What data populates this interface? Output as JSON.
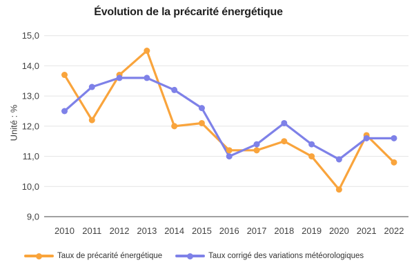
{
  "title": "Évolution de la précarité énergétique",
  "y_axis_label": "Unité : %",
  "colors": {
    "series_precarite": "#F9A43C",
    "series_corrige": "#7E81E8",
    "grid": "#E4E4E4",
    "axis": "#424242",
    "tick_text": "#424242",
    "legend_text": "#333333",
    "title_text": "#1F1F1F",
    "background": "#FFFFFF"
  },
  "legend": {
    "items": [
      {
        "label": "Taux de précarité énergétique",
        "color": "#F9A43C"
      },
      {
        "label": "Taux corrigé des variations météorologiques",
        "color": "#7E81E8"
      }
    ]
  },
  "chart_data": {
    "type": "line",
    "title": "Évolution de la précarité énergétique",
    "xlabel": "",
    "ylabel": "Unité : %",
    "x": [
      2010,
      2011,
      2012,
      2013,
      2014,
      2015,
      2016,
      2017,
      2018,
      2019,
      2020,
      2021,
      2022
    ],
    "x_tick_labels": [
      "2010",
      "2011",
      "2012",
      "2013",
      "2014",
      "2015",
      "2016",
      "2017",
      "2018",
      "2019",
      "2020",
      "2021",
      "2022"
    ],
    "series": [
      {
        "name": "Taux de précarité énergétique",
        "color": "#F9A43C",
        "values": [
          13.7,
          12.2,
          13.7,
          14.5,
          12.0,
          12.1,
          11.2,
          11.2,
          11.5,
          11.0,
          9.9,
          11.7,
          10.8
        ]
      },
      {
        "name": "Taux corrigé des variations météorologiques",
        "color": "#7E81E8",
        "values": [
          12.5,
          13.3,
          13.6,
          13.6,
          13.2,
          12.6,
          11.0,
          11.4,
          12.1,
          11.4,
          10.9,
          11.6,
          11.6
        ]
      }
    ],
    "ylim": [
      9.0,
      15.0
    ],
    "y_ticks": [
      9,
      10,
      11,
      12,
      13,
      14,
      15
    ],
    "y_tick_labels": [
      "9,0",
      "10,0",
      "11,0",
      "12,0",
      "13,0",
      "14,0",
      "15,0"
    ],
    "grid": true,
    "legend_position": "bottom"
  }
}
